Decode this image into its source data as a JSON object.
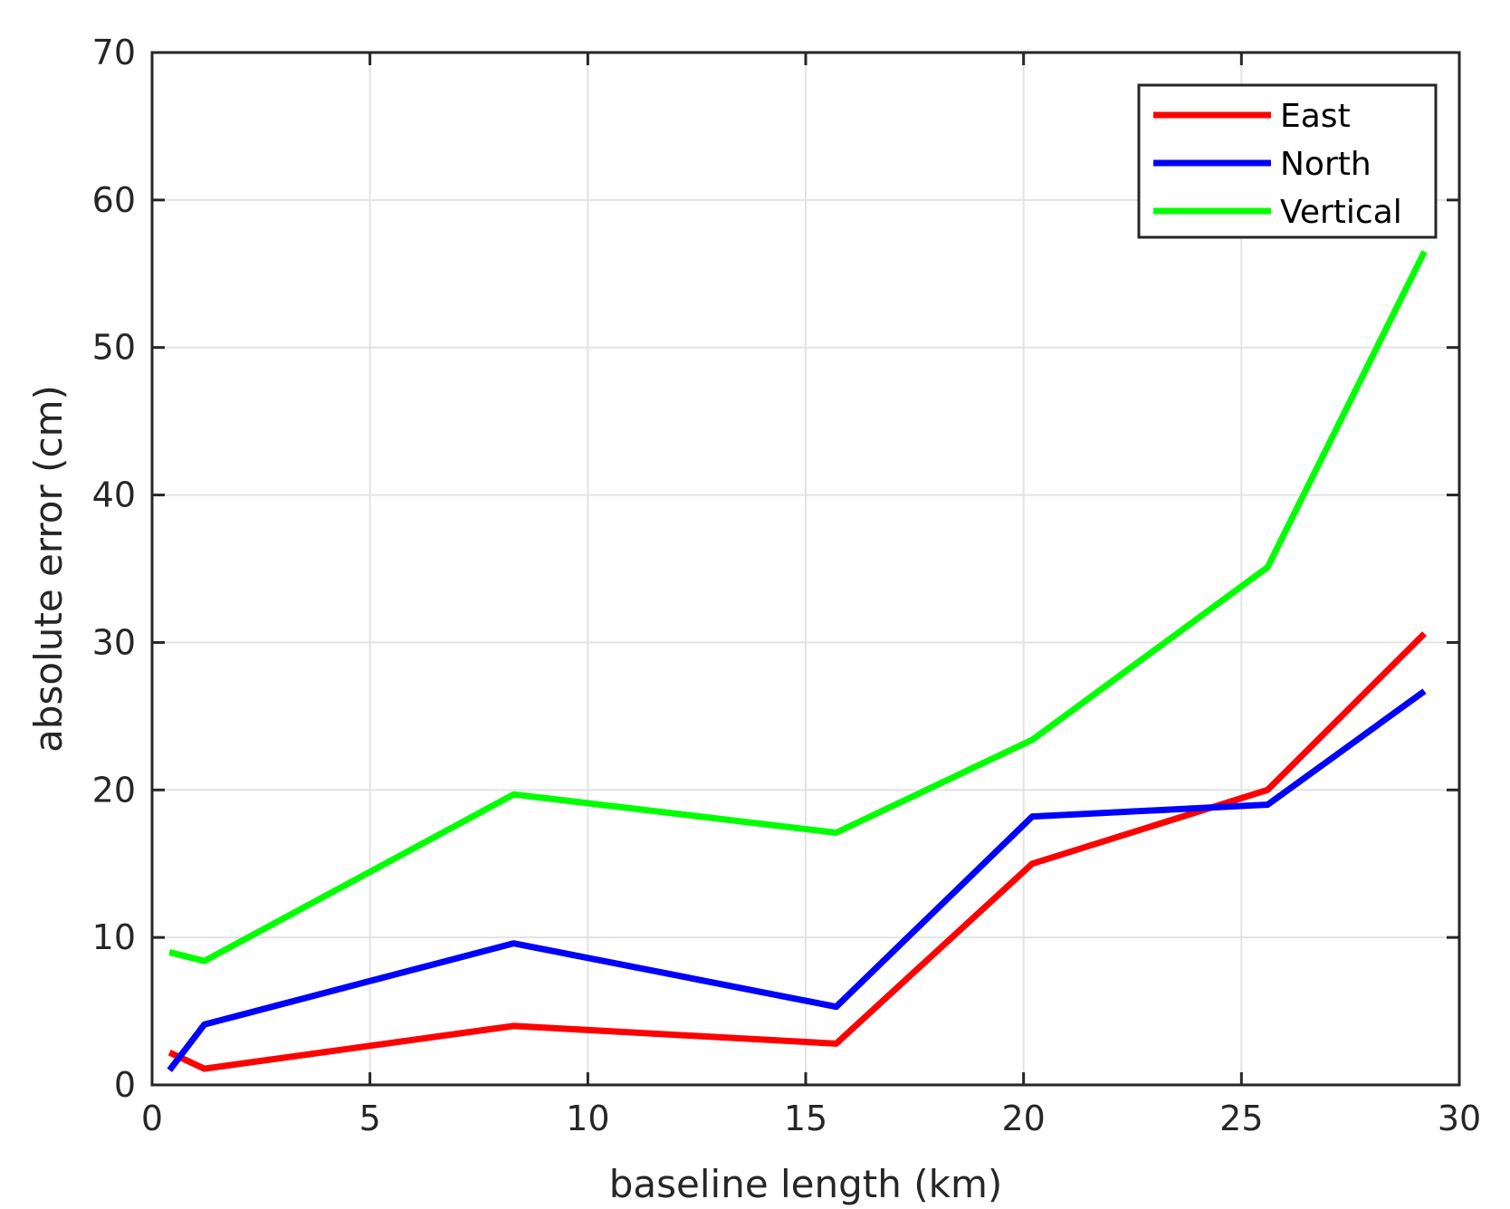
{
  "chart_data": {
    "type": "line",
    "title": "",
    "xlabel": "baseline length (km)",
    "ylabel": "absolute error (cm)",
    "xlim": [
      0,
      30
    ],
    "ylim": [
      0,
      70
    ],
    "xticks": [
      0,
      5,
      10,
      15,
      20,
      25,
      30
    ],
    "yticks": [
      0,
      10,
      20,
      30,
      40,
      50,
      60,
      70
    ],
    "grid": true,
    "legend_position": "top-right",
    "x": [
      0.4,
      1.2,
      8.3,
      15.7,
      20.2,
      25.6,
      29.2
    ],
    "series": [
      {
        "name": "East",
        "color": "#ff0000",
        "values": [
          2.2,
          1.1,
          4.0,
          2.8,
          15.0,
          20.0,
          30.6
        ]
      },
      {
        "name": "North",
        "color": "#0000ff",
        "values": [
          1.0,
          4.1,
          9.6,
          5.3,
          18.2,
          19.0,
          26.7
        ]
      },
      {
        "name": "Vertical",
        "color": "#00ff00",
        "values": [
          9.0,
          8.4,
          19.7,
          17.1,
          23.4,
          35.1,
          56.5
        ]
      }
    ]
  }
}
